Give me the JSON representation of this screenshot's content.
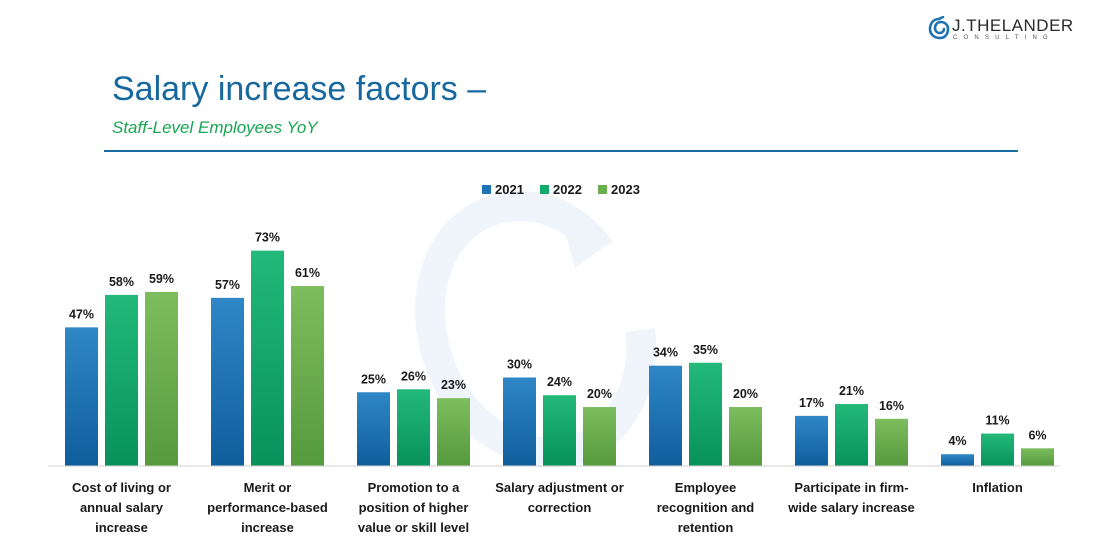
{
  "brand": {
    "name": "J.THELANDER",
    "tagline": "CONSULTING"
  },
  "header": {
    "title": "Salary increase factors –",
    "subtitle": "Staff-Level Employees YoY"
  },
  "colors": {
    "title": "#17689e",
    "subtitle": "#18a652",
    "rule": "#1a6aa4",
    "series": [
      "#1e73b4",
      "#10aa6a",
      "#6aae4e"
    ]
  },
  "chart_data": {
    "type": "bar",
    "title": "Salary increase factors – Staff-Level Employees YoY",
    "xlabel": "",
    "ylabel": "",
    "ylim": [
      0,
      80
    ],
    "grid": false,
    "legend_position": "top-center",
    "categories": [
      [
        "Cost of living or",
        "annual salary",
        "increase"
      ],
      [
        "Merit or",
        "performance-based",
        "increase"
      ],
      [
        "Promotion to a",
        "position of higher",
        "value or skill level"
      ],
      [
        "Salary adjustment or",
        "correction"
      ],
      [
        "Employee",
        "recognition and",
        "retention"
      ],
      [
        "Participate in firm-",
        "wide salary increase"
      ],
      [
        "Inflation"
      ]
    ],
    "series": [
      {
        "name": "2021",
        "values": [
          47,
          57,
          25,
          30,
          34,
          17,
          4
        ]
      },
      {
        "name": "2022",
        "values": [
          58,
          73,
          26,
          24,
          35,
          21,
          11
        ]
      },
      {
        "name": "2023",
        "values": [
          59,
          61,
          23,
          20,
          20,
          16,
          6
        ]
      }
    ],
    "value_suffix": "%"
  }
}
